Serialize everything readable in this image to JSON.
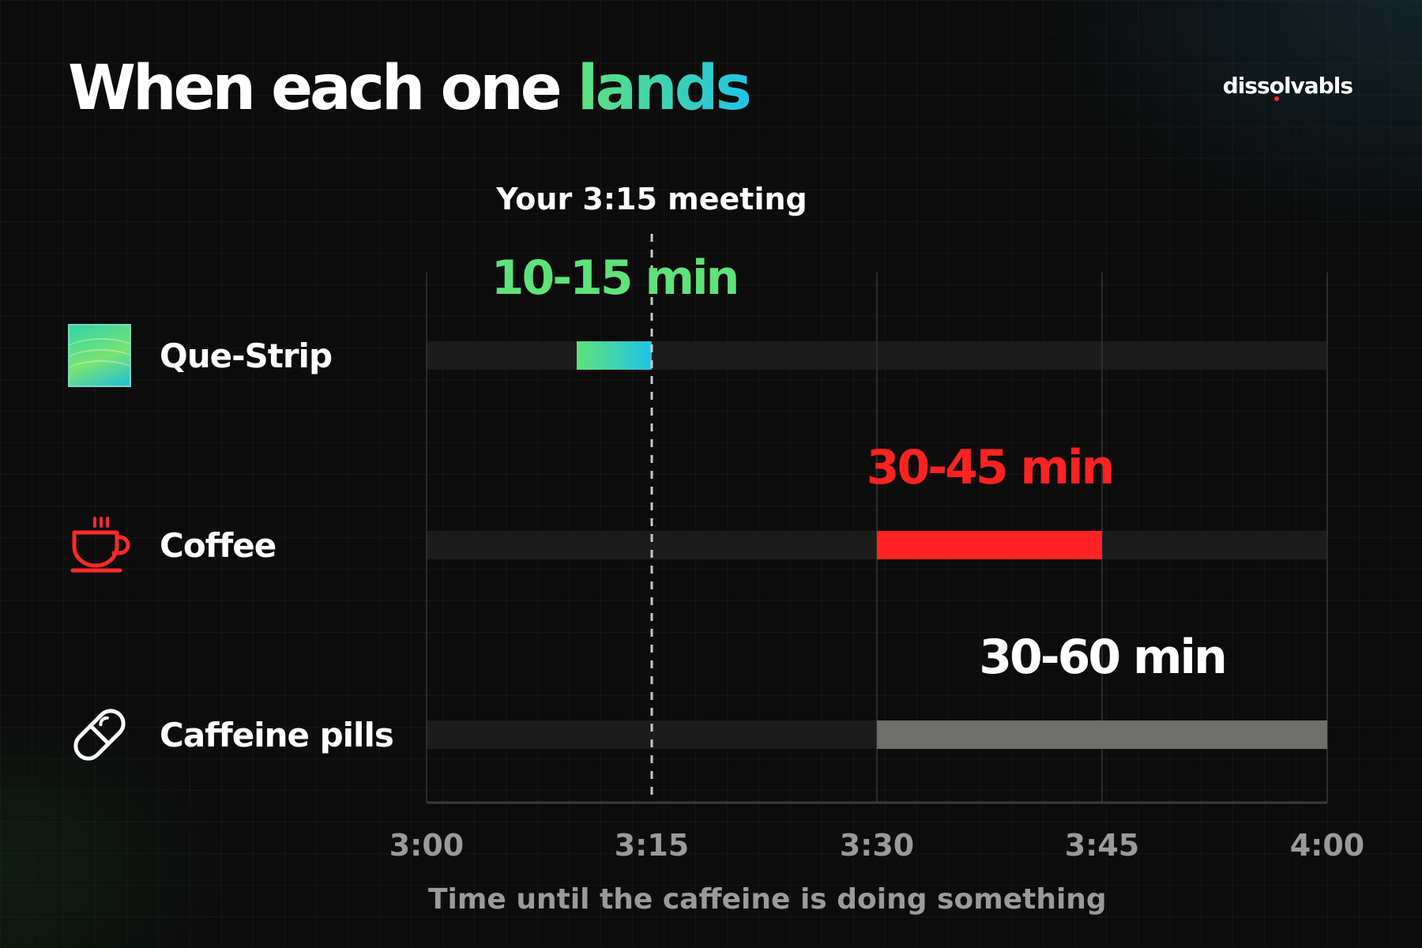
{
  "header": {
    "title_main": "When each one ",
    "title_accent": "lands",
    "brand": {
      "before": "diss",
      "o": "o",
      "after": "lvabls",
      "dot_color": "#ff2a2a"
    }
  },
  "chart_data": {
    "type": "bar",
    "orientation": "horizontal-range",
    "xlabel": "Time until the caffeine is doing something",
    "x_unit": "clock time",
    "xlim": [
      "3:00",
      "4:00"
    ],
    "x_ticks": [
      "3:00",
      "3:15",
      "3:30",
      "3:45",
      "4:00"
    ],
    "grid": true,
    "reference_line": {
      "x": "3:15",
      "label": "Your 3:15 meeting",
      "style": "dashed"
    },
    "rows": [
      {
        "name": "Que-Strip",
        "icon": "strip-swatch-icon",
        "start": "3:10",
        "end": "3:15",
        "label": "10-15 min",
        "color": "#1fc4e8",
        "gradient": [
          "#5ee27a",
          "#1fc4e8"
        ],
        "label_color": "#5ee27a"
      },
      {
        "name": "Coffee",
        "icon": "coffee-cup-icon",
        "start": "3:30",
        "end": "3:45",
        "label": "30-45 min",
        "color": "#ff2222",
        "label_color": "#ff2222"
      },
      {
        "name": "Caffeine pills",
        "icon": "pill-icon",
        "start": "3:30",
        "end": "4:00",
        "label": "30-60 min",
        "color": "#6e6e6a",
        "label_color": "#ffffff"
      }
    ],
    "track_color": "#1c1c1c"
  }
}
